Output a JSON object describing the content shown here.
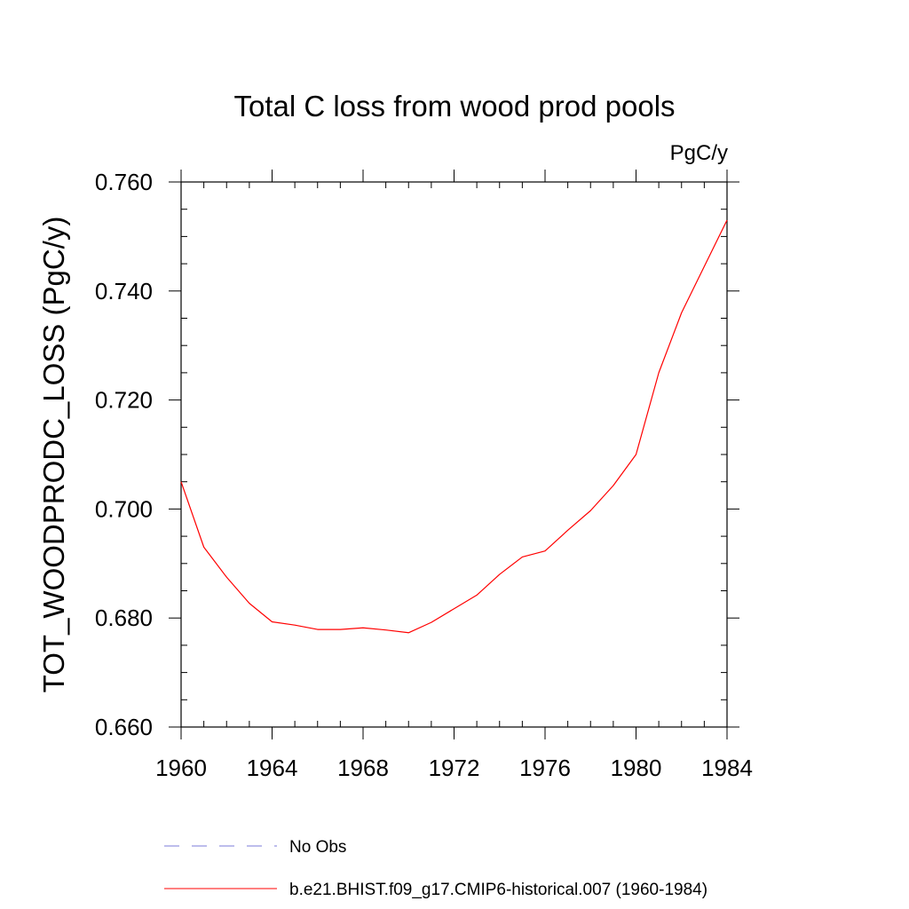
{
  "chart_data": {
    "type": "line",
    "title": "Total C loss from wood prod pools",
    "units": "PgC/y",
    "ylabel": "TOT_WOODPRODC_LOSS  (PgC/y)",
    "xlabel": "",
    "xlim": [
      1960,
      1984
    ],
    "ylim": [
      0.66,
      0.76
    ],
    "x_ticks": [
      1960,
      1964,
      1968,
      1972,
      1976,
      1980,
      1984
    ],
    "x_tick_labels": [
      "1960",
      "1964",
      "1968",
      "1972",
      "1976",
      "1980",
      "1984"
    ],
    "y_ticks": [
      0.66,
      0.68,
      0.7,
      0.72,
      0.74,
      0.76
    ],
    "y_tick_labels": [
      "0.660",
      "0.680",
      "0.700",
      "0.720",
      "0.740",
      "0.760"
    ],
    "grid": false,
    "legend_position": "bottom",
    "series": [
      {
        "name": "b.e21.BHIST.f09_g17.CMIP6-historical.007 (1960-1984)",
        "color": "#ff0000",
        "style": "solid",
        "x": [
          1960,
          1961,
          1962,
          1963,
          1964,
          1965,
          1966,
          1967,
          1968,
          1969,
          1970,
          1971,
          1972,
          1973,
          1974,
          1975,
          1976,
          1977,
          1978,
          1979,
          1980,
          1981,
          1982,
          1983,
          1984
        ],
        "y": [
          0.705,
          0.693,
          0.6875,
          0.6827,
          0.6793,
          0.6787,
          0.6779,
          0.6779,
          0.6782,
          0.6778,
          0.6773,
          0.6792,
          0.6817,
          0.6842,
          0.688,
          0.6912,
          0.6923,
          0.6961,
          0.6997,
          0.7043,
          0.71,
          0.725,
          0.736,
          0.7445,
          0.753
        ]
      }
    ],
    "legend": [
      {
        "label": "No Obs",
        "color": "#7b7bd9",
        "style": "dashed"
      },
      {
        "label": "b.e21.BHIST.f09_g17.CMIP6-historical.007 (1960-1984)",
        "color": "#ff0000",
        "style": "solid"
      }
    ]
  }
}
